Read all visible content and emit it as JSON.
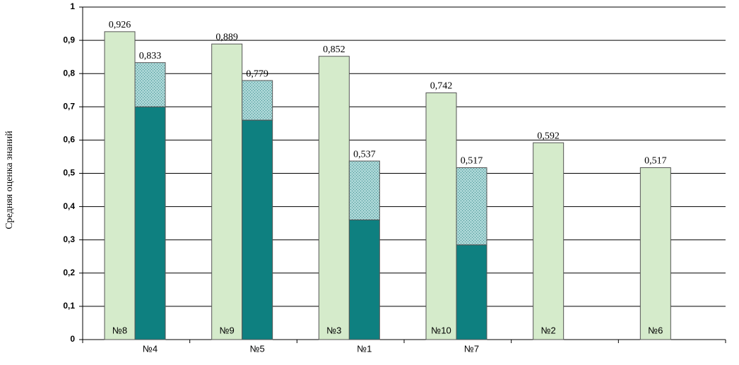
{
  "chart_data": {
    "type": "grouped_stacked_bar",
    "y_label": "Средняя оценка знаний",
    "categories": [
      "№4",
      "№5",
      "№1",
      "№7",
      null,
      null
    ],
    "ylim": [
      0,
      1
    ],
    "yticks": [
      0,
      {
        "value": 0.1,
        "label": "0,1"
      },
      {
        "value": 0.2,
        "label": "0,2"
      },
      {
        "value": 0.3,
        "label": "0,3"
      },
      {
        "value": 0.4,
        "label": "0,4"
      },
      {
        "value": 0.5,
        "label": "0,5"
      },
      {
        "value": 0.6,
        "label": "0,6"
      },
      {
        "value": 0.7,
        "label": "0,7"
      },
      {
        "value": 0.8,
        "label": "0,8"
      },
      {
        "value": 0.9,
        "label": "0,9"
      },
      1
    ],
    "grid": true,
    "first_bars": {
      "color": "#d5ebcb",
      "values": [
        0.926,
        0.889,
        0.852,
        0.742,
        0.592,
        0.517
      ],
      "value_labels": [
        "0,926",
        "0,889",
        "0,852",
        "0,742",
        "0,592",
        "0,517"
      ],
      "bar_labels": [
        "№8",
        "№9",
        "№3",
        "№10",
        "№2",
        "№6"
      ]
    },
    "stack_bottom": {
      "color": "#0e8080",
      "values": [
        0.7,
        0.66,
        0.36,
        0.285,
        null,
        null
      ]
    },
    "stack_top": {
      "color": "#9fcfcf",
      "values": [
        0.133,
        0.119,
        0.177,
        0.232,
        null,
        null
      ]
    },
    "stack_totals": {
      "values": [
        0.833,
        0.779,
        0.537,
        0.517,
        null,
        null
      ],
      "value_labels": [
        "0,833",
        "0,779",
        "0,537",
        "0,517",
        null,
        null
      ]
    }
  }
}
